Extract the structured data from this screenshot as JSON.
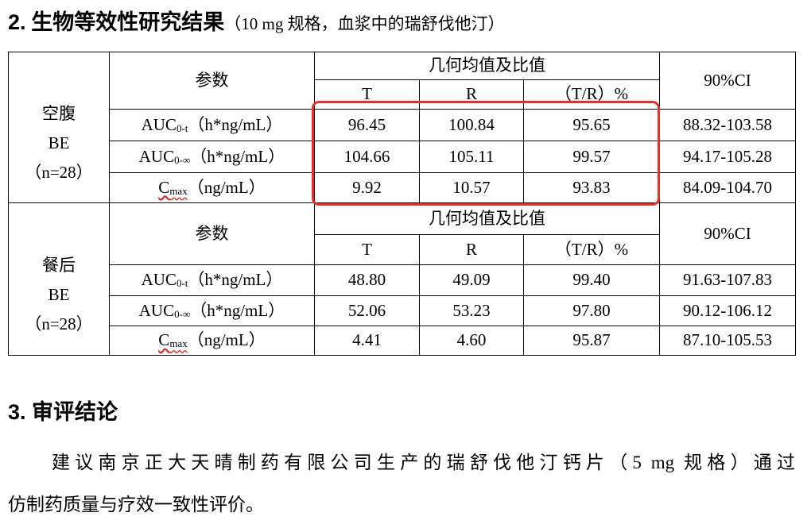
{
  "heading": {
    "number": "2.",
    "title": "生物等效性研究结果",
    "note": "（10 mg 规格，血浆中的瑞舒伐他汀）"
  },
  "table": {
    "blocks": [
      {
        "condition": [
          "空腹",
          "BE",
          "（n=28）"
        ],
        "header": {
          "param": "参数",
          "group": "几何均值及比值",
          "ci": "90%CI",
          "cols": [
            "T",
            "R",
            "（T/R）%"
          ]
        },
        "rows": [
          {
            "name": "AUC",
            "sub": "0-t",
            "unit": "（h*ng/mL）",
            "values": [
              "96.45",
              "100.84",
              "95.65"
            ],
            "ci": "88.32-103.58"
          },
          {
            "name": "AUC",
            "sub": "0-∞",
            "unit": "（h*ng/mL）",
            "values": [
              "104.66",
              "105.11",
              "99.57"
            ],
            "ci": "94.17-105.28"
          },
          {
            "name": "C",
            "sub": "max",
            "unit": "（ng/mL）",
            "values": [
              "9.92",
              "10.57",
              "93.83"
            ],
            "ci": "84.09-104.70"
          }
        ]
      },
      {
        "condition": [
          "餐后",
          "BE",
          "（n=28）"
        ],
        "header": {
          "param": "参数",
          "group": "几何均值及比值",
          "ci": "90%CI",
          "cols": [
            "T",
            "R",
            "（T/R）%"
          ]
        },
        "rows": [
          {
            "name": "AUC",
            "sub": "0-t",
            "unit": "（h*ng/mL）",
            "values": [
              "48.80",
              "49.09",
              "99.40"
            ],
            "ci": "91.63-107.83"
          },
          {
            "name": "AUC",
            "sub": "0-∞",
            "unit": "（h*ng/mL）",
            "values": [
              "52.06",
              "53.23",
              "97.80"
            ],
            "ci": "90.12-106.12"
          },
          {
            "name": "C",
            "sub": "max",
            "unit": "（ng/mL）",
            "values": [
              "4.41",
              "4.60",
              "95.87"
            ],
            "ci": "87.10-105.53"
          }
        ]
      }
    ]
  },
  "section": {
    "number": "3.",
    "title": "审评结论"
  },
  "paragraph": [
    "建议南京正大天晴制药有限公司生产的瑞舒伐他汀钙片（5 mg 规格）通过",
    "仿制药质量与疗效一致性评价。"
  ]
}
